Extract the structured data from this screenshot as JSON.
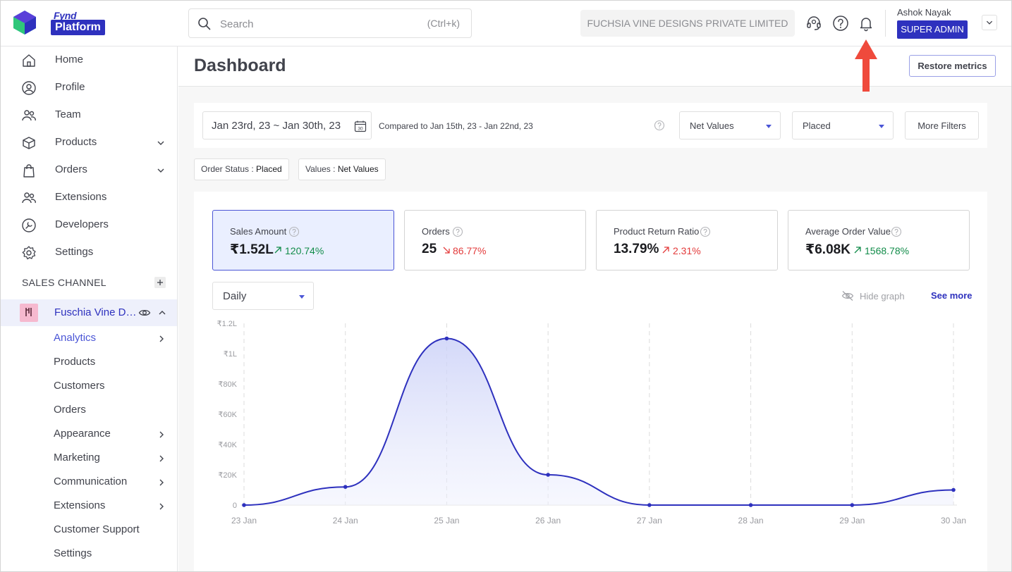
{
  "brand": {
    "logo_top": "Fynd",
    "logo_bottom": "Platform"
  },
  "search": {
    "placeholder": "Search",
    "shortcut": "(Ctrl+k)"
  },
  "company": "FUCHSIA VINE DESIGNS PRIVATE LIMITED",
  "user": {
    "name": "Ashok Nayak",
    "role": "SUPER ADMIN"
  },
  "sidebar": {
    "items": [
      {
        "label": "Home",
        "icon": "home-icon"
      },
      {
        "label": "Profile",
        "icon": "user-circle-icon"
      },
      {
        "label": "Team",
        "icon": "team-icon"
      },
      {
        "label": "Products",
        "icon": "box-icon"
      },
      {
        "label": "Orders",
        "icon": "shopping-bag-icon"
      },
      {
        "label": "Extensions",
        "icon": "extensions-icon"
      },
      {
        "label": "Developers",
        "icon": "developers-icon"
      },
      {
        "label": "Settings",
        "icon": "gear-icon"
      }
    ],
    "section_title": "SALES CHANNEL",
    "channel_name": "Fuschia Vine Designs",
    "sub_items": [
      {
        "label": "Analytics"
      },
      {
        "label": "Products"
      },
      {
        "label": "Customers"
      },
      {
        "label": "Orders"
      },
      {
        "label": "Appearance"
      },
      {
        "label": "Marketing"
      },
      {
        "label": "Communication"
      },
      {
        "label": "Extensions"
      },
      {
        "label": "Customer Support"
      },
      {
        "label": "Settings"
      }
    ]
  },
  "page": {
    "title": "Dashboard",
    "restore_label": "Restore metrics"
  },
  "filters": {
    "date_range": "Jan 23rd, 23 ~ Jan 30th, 23",
    "calendar_day": "30",
    "compared": "Compared to Jan 15th, 23 - Jan 22nd, 23",
    "values_select": "Net Values",
    "status_select": "Placed",
    "more_label": "More Filters",
    "chips": [
      {
        "key": "Order Status : ",
        "value": "Placed"
      },
      {
        "key": "Values : ",
        "value": "Net Values"
      }
    ]
  },
  "metrics": [
    {
      "label": "Sales Amount",
      "value": "₹1.52L",
      "change": "120.74%",
      "direction": "up"
    },
    {
      "label": "Orders",
      "value": "25",
      "change": "86.77%",
      "direction": "down"
    },
    {
      "label": "Product Return Ratio",
      "value": "13.79%",
      "change": "2.31%",
      "direction": "up"
    },
    {
      "label": "Average Order Value",
      "value": "₹6.08K",
      "change": "1568.78%",
      "direction": "up"
    }
  ],
  "graph": {
    "period": "Daily",
    "hide_label": "Hide graph",
    "see_more_label": "See more"
  },
  "colors": {
    "accent": "#2e31be",
    "up": "#128c4a",
    "down": "#e33b3b",
    "annotation": "#ef4a3c"
  },
  "chart_data": {
    "type": "area",
    "x": [
      "23 Jan",
      "24 Jan",
      "25 Jan",
      "26 Jan",
      "27 Jan",
      "28 Jan",
      "29 Jan",
      "30 Jan"
    ],
    "y": [
      0,
      12000,
      110000,
      20000,
      0,
      0,
      0,
      10000
    ],
    "yticks": [
      0,
      20000,
      40000,
      60000,
      80000,
      100000,
      120000
    ],
    "ytick_labels": [
      "0",
      "₹20K",
      "₹40K",
      "₹60K",
      "₹80K",
      "₹1L",
      "₹1.2L"
    ],
    "ylim": [
      0,
      120000
    ],
    "grid": "vertical-dashed"
  }
}
